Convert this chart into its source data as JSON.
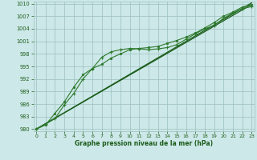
{
  "xlabel": "Graphe pression niveau de la mer (hPa)",
  "ylim": [
    979.5,
    1010.5
  ],
  "xlim": [
    -0.3,
    23.3
  ],
  "yticks": [
    980,
    983,
    986,
    989,
    992,
    995,
    998,
    1001,
    1004,
    1007,
    1010
  ],
  "xticks": [
    0,
    1,
    2,
    3,
    4,
    5,
    6,
    7,
    8,
    9,
    10,
    11,
    12,
    13,
    14,
    15,
    16,
    17,
    18,
    19,
    20,
    21,
    22,
    23
  ],
  "background_color": "#cde8e8",
  "grid_color": "#9bbfbf",
  "line_color_dark": "#1a5c1a",
  "line_color_med": "#2d7a2d",
  "series_plus": {
    "x": [
      0,
      1,
      2,
      3,
      4,
      5,
      6,
      7,
      8,
      9,
      10,
      11,
      12,
      13,
      14,
      15,
      16,
      17,
      18,
      19,
      20,
      21,
      22,
      23
    ],
    "y": [
      980.0,
      981.2,
      982.5,
      985.8,
      988.5,
      992.0,
      994.5,
      997.2,
      998.5,
      999.0,
      999.3,
      999.2,
      999.0,
      999.2,
      999.5,
      1000.2,
      1001.5,
      1002.8,
      1004.0,
      1004.8,
      1006.5,
      1007.8,
      1008.8,
      1009.3
    ]
  },
  "series_dot": {
    "x": [
      0,
      1,
      2,
      3,
      4,
      5,
      6,
      7,
      8,
      9,
      10,
      11,
      12,
      13,
      14,
      15,
      16,
      17,
      18,
      19,
      20,
      21,
      22,
      23
    ],
    "y": [
      980.0,
      981.0,
      983.8,
      986.5,
      990.0,
      993.0,
      994.5,
      995.5,
      997.0,
      998.0,
      999.0,
      999.3,
      999.5,
      999.8,
      1000.5,
      1001.2,
      1002.0,
      1003.0,
      1004.2,
      1005.5,
      1007.0,
      1008.0,
      1009.2,
      1009.8
    ]
  },
  "series_line1": {
    "x": [
      0,
      23
    ],
    "y": [
      980.0,
      1009.8
    ]
  },
  "series_line2": {
    "x": [
      0,
      23
    ],
    "y": [
      980.0,
      1010.2
    ]
  }
}
